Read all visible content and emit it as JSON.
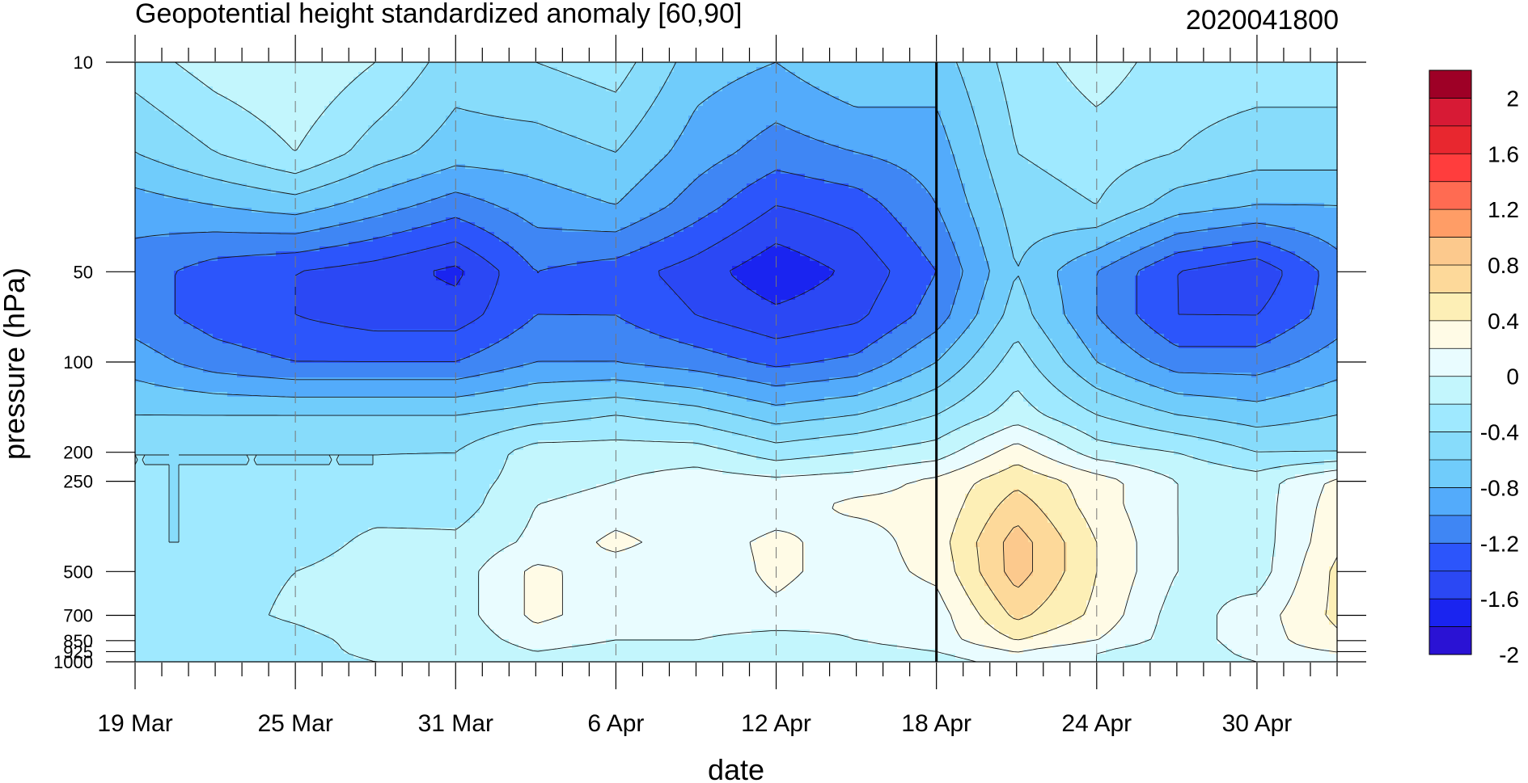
{
  "chart_data": {
    "type": "heatmap",
    "title": "Geopotential height standardized anomaly [60,90]",
    "subtitle": "2020041800",
    "xlabel": "date",
    "ylabel": "pressure (hPa)",
    "x_tick_labels": [
      "19 Mar",
      "25 Mar",
      "31 Mar",
      "6 Apr",
      "12 Apr",
      "18 Apr",
      "24 Apr",
      "30 Apr"
    ],
    "x_tick_days": [
      0,
      6,
      12,
      18,
      24,
      30,
      36,
      42
    ],
    "x_range_days": [
      0,
      45
    ],
    "current_date_day": 30,
    "y_scale": "log",
    "y_range": [
      10,
      1000
    ],
    "y_ticks": [
      10,
      50,
      100,
      200,
      250,
      500,
      700,
      850,
      925,
      1000
    ],
    "y_tick_labels": [
      "10",
      "50",
      "100",
      "200",
      "250",
      "500",
      "700",
      "850",
      "925",
      "1000"
    ],
    "levels": [
      -2,
      -1.8,
      -1.6,
      -1.4,
      -1.2,
      -1,
      -0.8,
      -0.6,
      -0.4,
      -0.2,
      0,
      0.2,
      0.4,
      0.6,
      0.8,
      1,
      1.2,
      1.4,
      1.6,
      1.8,
      2
    ],
    "colorbar_labels": [
      "2",
      "1.6",
      "1.2",
      "0.8",
      "0.4",
      "0",
      "-0.4",
      "-0.8",
      "-1.2",
      "-1.6",
      "-2"
    ],
    "colorbar_colors": [
      "#9e0026",
      "#d71a35",
      "#e8272f",
      "#ff3d3d",
      "#ff6b52",
      "#ff9d66",
      "#fcc98d",
      "#fdd99a",
      "#fdefb6",
      "#fffbe6",
      "#e9fcff",
      "#c3f6fd",
      "#9fe9ff",
      "#87dcfb",
      "#70ccfb",
      "#53abfb",
      "#3f86f4",
      "#2c55fb",
      "#2b48f4",
      "#1a24f0",
      "#2a12d4"
    ],
    "grid_pressure": [
      10,
      20,
      30,
      50,
      70,
      100,
      150,
      200,
      250,
      300,
      400,
      500,
      700,
      850,
      925,
      1000
    ],
    "grid_days": [
      0,
      3,
      6,
      9,
      12,
      15,
      18,
      21,
      24,
      27,
      30,
      33,
      36,
      39,
      42,
      45
    ],
    "values": [
      [
        -0.5,
        -0.3,
        -0.2,
        -0.4,
        -0.7,
        -0.6,
        -0.5,
        -0.9,
        -1.0,
        -0.8,
        -0.9,
        -0.5,
        -0.3,
        -0.5,
        -0.5,
        -0.5
      ],
      [
        -0.8,
        -0.6,
        -0.4,
        -0.7,
        -0.9,
        -0.9,
        -0.8,
        -1.1,
        -1.3,
        -1.2,
        -1.1,
        -0.6,
        -0.5,
        -0.6,
        -0.7,
        -0.7
      ],
      [
        -1.1,
        -1.0,
        -0.9,
        -1.1,
        -1.3,
        -1.1,
        -1.0,
        -1.3,
        -1.6,
        -1.5,
        -1.2,
        -0.7,
        -0.6,
        -0.9,
        -1.0,
        -1.0
      ],
      [
        -1.3,
        -1.5,
        -1.6,
        -1.7,
        -1.85,
        -1.4,
        -1.5,
        -1.7,
        -1.95,
        -1.75,
        -1.4,
        -0.8,
        -1.2,
        -1.6,
        -1.75,
        -1.3
      ],
      [
        -1.3,
        -1.5,
        -1.6,
        -1.7,
        -1.7,
        -1.4,
        -1.4,
        -1.6,
        -1.75,
        -1.65,
        -1.3,
        -0.7,
        -1.2,
        -1.6,
        -1.6,
        -1.3
      ],
      [
        -1.1,
        -1.3,
        -1.4,
        -1.4,
        -1.4,
        -1.2,
        -1.2,
        -1.3,
        -1.45,
        -1.35,
        -1.0,
        -0.5,
        -1.0,
        -1.3,
        -1.3,
        -1.1
      ],
      [
        -0.8,
        -0.8,
        -0.8,
        -0.8,
        -0.8,
        -0.7,
        -0.6,
        -0.7,
        -0.9,
        -0.8,
        -0.6,
        -0.3,
        -0.6,
        -0.8,
        -0.9,
        -0.8
      ],
      [
        -0.6,
        -0.6,
        -0.6,
        -0.6,
        -0.6,
        -0.3,
        -0.3,
        -0.3,
        -0.5,
        -0.4,
        -0.3,
        0.1,
        -0.3,
        -0.4,
        -0.6,
        -0.6
      ],
      [
        -0.6,
        -0.6,
        -0.6,
        -0.6,
        -0.5,
        -0.3,
        -0.2,
        -0.1,
        -0.15,
        -0.1,
        0.05,
        0.35,
        0.1,
        -0.2,
        -0.3,
        0.05
      ],
      [
        -0.6,
        -0.6,
        -0.6,
        -0.55,
        -0.5,
        -0.2,
        -0.1,
        -0.15,
        -0.1,
        0.05,
        0.05,
        0.5,
        0.1,
        -0.2,
        -0.3,
        0.1
      ],
      [
        -0.6,
        -0.6,
        -0.6,
        -0.3,
        -0.35,
        -0.15,
        0.05,
        -0.1,
        0.05,
        -0.1,
        0.1,
        0.7,
        0.2,
        -0.2,
        -0.3,
        0.15
      ],
      [
        -0.6,
        -0.5,
        -0.4,
        -0.2,
        -0.3,
        0.05,
        -0.1,
        -0.15,
        0.05,
        -0.1,
        0.05,
        0.7,
        0.2,
        -0.2,
        -0.3,
        0.25
      ],
      [
        -0.5,
        -0.5,
        -0.35,
        -0.2,
        -0.3,
        0.05,
        -0.1,
        -0.1,
        -0.05,
        -0.15,
        -0.1,
        0.45,
        0.15,
        -0.3,
        -0.1,
        0.25
      ],
      [
        -0.45,
        -0.6,
        -0.5,
        -0.3,
        -0.35,
        -0.1,
        -0.2,
        -0.2,
        -0.3,
        -0.2,
        -0.1,
        0.2,
        0.0,
        -0.3,
        -0.1,
        0.15
      ],
      [
        -0.5,
        -0.6,
        -0.55,
        -0.3,
        -0.4,
        -0.2,
        -0.3,
        -0.3,
        -0.35,
        -0.3,
        -0.2,
        0.0,
        -0.2,
        -0.4,
        -0.1,
        0.0
      ],
      [
        -0.6,
        -0.6,
        -0.6,
        -0.4,
        -0.4,
        -0.3,
        -0.35,
        -0.3,
        -0.4,
        -0.35,
        -0.3,
        -0.1,
        -0.2,
        -0.4,
        -0.2,
        -0.1
      ]
    ]
  }
}
